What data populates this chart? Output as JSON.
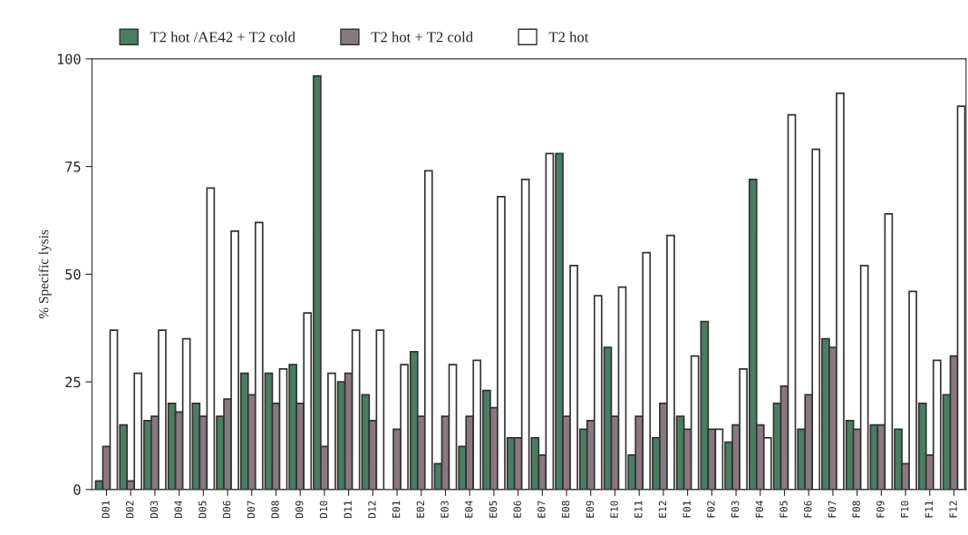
{
  "chart_data": {
    "type": "bar",
    "ylabel": "% Specific lysis",
    "categories": [
      "D01",
      "D02",
      "D03",
      "D04",
      "D05",
      "D06",
      "D07",
      "D08",
      "D09",
      "D10",
      "D11",
      "D12",
      "E01",
      "E02",
      "E03",
      "E04",
      "E05",
      "E06",
      "E07",
      "E08",
      "E09",
      "E10",
      "E11",
      "E12",
      "F01",
      "F02",
      "F03",
      "F04",
      "F05",
      "F06",
      "F07",
      "F08",
      "F09",
      "F10",
      "F11",
      "F12"
    ],
    "series": [
      {
        "name": "T2 hot /AE42 + T2 cold",
        "color": "#4a7d63",
        "values": [
          2,
          15,
          16,
          20,
          20,
          17,
          27,
          27,
          29,
          96,
          25,
          22,
          null,
          32,
          6,
          10,
          23,
          12,
          12,
          78,
          14,
          33,
          8,
          12,
          17,
          39,
          11,
          72,
          20,
          14,
          35,
          16,
          15,
          14,
          20,
          22
        ]
      },
      {
        "name": "T2 hot + T2 cold",
        "color": "#8a7880",
        "values": [
          10,
          2,
          17,
          18,
          17,
          21,
          22,
          20,
          20,
          10,
          27,
          16,
          14,
          17,
          17,
          17,
          19,
          12,
          8,
          17,
          16,
          17,
          17,
          20,
          14,
          14,
          15,
          15,
          24,
          22,
          33,
          14,
          15,
          6,
          8,
          31
        ]
      },
      {
        "name": "T2 hot",
        "color": "#ffffff",
        "values": [
          37,
          27,
          37,
          35,
          70,
          60,
          62,
          28,
          41,
          27,
          37,
          37,
          29,
          74,
          29,
          30,
          68,
          72,
          78,
          52,
          45,
          47,
          55,
          59,
          31,
          14,
          28,
          12,
          87,
          79,
          92,
          52,
          64,
          46,
          30,
          89
        ]
      }
    ],
    "ylim": [
      0,
      100
    ],
    "yticks": [
      0,
      25,
      50,
      75,
      100
    ],
    "grid": false,
    "legend": "top"
  }
}
